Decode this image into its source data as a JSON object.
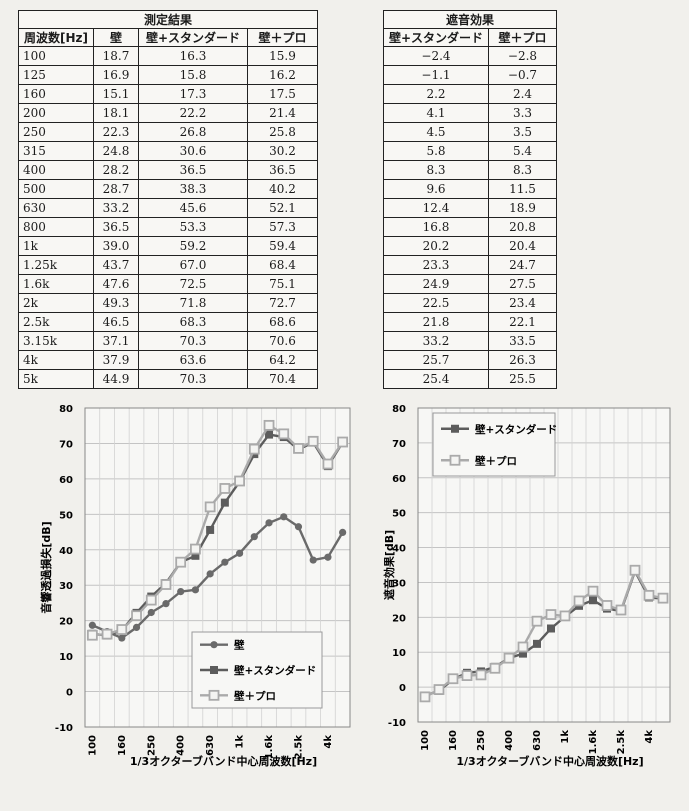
{
  "measurement_table": {
    "title": "測定結果",
    "headers": [
      "周波数[Hz]",
      "壁",
      "壁+スタンダード",
      "壁＋プロ"
    ],
    "rows": [
      [
        "100",
        "18.7",
        "16.3",
        "15.9"
      ],
      [
        "125",
        "16.9",
        "15.8",
        "16.2"
      ],
      [
        "160",
        "15.1",
        "17.3",
        "17.5"
      ],
      [
        "200",
        "18.1",
        "22.2",
        "21.4"
      ],
      [
        "250",
        "22.3",
        "26.8",
        "25.8"
      ],
      [
        "315",
        "24.8",
        "30.6",
        "30.2"
      ],
      [
        "400",
        "28.2",
        "36.5",
        "36.5"
      ],
      [
        "500",
        "28.7",
        "38.3",
        "40.2"
      ],
      [
        "630",
        "33.2",
        "45.6",
        "52.1"
      ],
      [
        "800",
        "36.5",
        "53.3",
        "57.3"
      ],
      [
        "1k",
        "39.0",
        "59.2",
        "59.4"
      ],
      [
        "1.25k",
        "43.7",
        "67.0",
        "68.4"
      ],
      [
        "1.6k",
        "47.6",
        "72.5",
        "75.1"
      ],
      [
        "2k",
        "49.3",
        "71.8",
        "72.7"
      ],
      [
        "2.5k",
        "46.5",
        "68.3",
        "68.6"
      ],
      [
        "3.15k",
        "37.1",
        "70.3",
        "70.6"
      ],
      [
        "4k",
        "37.9",
        "63.6",
        "64.2"
      ],
      [
        "5k",
        "44.9",
        "70.3",
        "70.4"
      ]
    ]
  },
  "effect_table": {
    "title": "遮音効果",
    "headers": [
      "壁+スタンダード",
      "壁＋プロ"
    ],
    "rows": [
      [
        "−2.4",
        "−2.8"
      ],
      [
        "−1.1",
        "−0.7"
      ],
      [
        "2.2",
        "2.4"
      ],
      [
        "4.1",
        "3.3"
      ],
      [
        "4.5",
        "3.5"
      ],
      [
        "5.8",
        "5.4"
      ],
      [
        "8.3",
        "8.3"
      ],
      [
        "9.6",
        "11.5"
      ],
      [
        "12.4",
        "18.9"
      ],
      [
        "16.8",
        "20.8"
      ],
      [
        "20.2",
        "20.4"
      ],
      [
        "23.3",
        "24.7"
      ],
      [
        "24.9",
        "27.5"
      ],
      [
        "22.5",
        "23.4"
      ],
      [
        "21.8",
        "22.1"
      ],
      [
        "33.2",
        "33.5"
      ],
      [
        "25.7",
        "26.3"
      ],
      [
        "25.4",
        "25.5"
      ]
    ]
  },
  "chart_data": [
    {
      "type": "line",
      "title": "",
      "ylabel": "音響透過損失[dB]",
      "xlabel": "1/3オクターブバンド中心周波数[Hz]",
      "categories": [
        "100",
        "125",
        "160",
        "200",
        "250",
        "315",
        "400",
        "500",
        "630",
        "800",
        "1k",
        "1.25k",
        "1.6k",
        "2k",
        "2.5k",
        "3.15k",
        "4k",
        "5k"
      ],
      "xtick_labels": [
        "100",
        "",
        "160",
        "",
        "250",
        "",
        "400",
        "",
        "630",
        "",
        "1k",
        "",
        "1.6k",
        "",
        "2.5k",
        "",
        "4k",
        ""
      ],
      "ylim": [
        -10,
        80
      ],
      "yticks": [
        -10,
        0,
        10,
        20,
        30,
        40,
        50,
        60,
        70,
        80
      ],
      "grid": true,
      "legend": "bottom-right",
      "series": [
        {
          "name": "壁",
          "marker": "circle",
          "color": "#6a6a6a",
          "values": [
            18.7,
            16.9,
            15.1,
            18.1,
            22.3,
            24.8,
            28.2,
            28.7,
            33.2,
            36.5,
            39.0,
            43.7,
            47.6,
            49.3,
            46.5,
            37.1,
            37.9,
            44.9
          ]
        },
        {
          "name": "壁+スタンダード",
          "marker": "square",
          "color": "#5c5c5c",
          "values": [
            16.3,
            15.8,
            17.3,
            22.2,
            26.8,
            30.6,
            36.5,
            38.3,
            45.6,
            53.3,
            59.2,
            67.0,
            72.5,
            71.8,
            68.3,
            70.3,
            63.6,
            70.3
          ]
        },
        {
          "name": "壁＋プロ",
          "marker": "open-square",
          "color": "#aaaaaa",
          "values": [
            15.9,
            16.2,
            17.5,
            21.4,
            25.8,
            30.2,
            36.5,
            40.2,
            52.1,
            57.3,
            59.4,
            68.4,
            75.1,
            72.7,
            68.6,
            70.6,
            64.2,
            70.4
          ]
        }
      ]
    },
    {
      "type": "line",
      "title": "",
      "ylabel": "遮音効果[dB]",
      "xlabel": "1/3オクターブバンド中心周波数[Hz]",
      "categories": [
        "100",
        "125",
        "160",
        "200",
        "250",
        "315",
        "400",
        "500",
        "630",
        "800",
        "1k",
        "1.25k",
        "1.6k",
        "2k",
        "2.5k",
        "3.15k",
        "4k",
        "5k"
      ],
      "xtick_labels": [
        "100",
        "",
        "160",
        "",
        "250",
        "",
        "400",
        "",
        "630",
        "",
        "1k",
        "",
        "1.6k",
        "",
        "2.5k",
        "",
        "4k",
        ""
      ],
      "ylim": [
        -10,
        80
      ],
      "yticks": [
        -10,
        0,
        10,
        20,
        30,
        40,
        50,
        60,
        70,
        80
      ],
      "grid": true,
      "legend": "top-left",
      "series": [
        {
          "name": "壁+スタンダード",
          "marker": "square",
          "color": "#5c5c5c",
          "values": [
            -2.4,
            -1.1,
            2.2,
            4.1,
            4.5,
            5.8,
            8.3,
            9.6,
            12.4,
            16.8,
            20.2,
            23.3,
            24.9,
            22.5,
            21.8,
            33.2,
            25.7,
            25.4
          ]
        },
        {
          "name": "壁＋プロ",
          "marker": "open-square",
          "color": "#aaaaaa",
          "values": [
            -2.8,
            -0.7,
            2.4,
            3.3,
            3.5,
            5.4,
            8.3,
            11.5,
            18.9,
            20.8,
            20.4,
            24.7,
            27.5,
            23.4,
            22.1,
            33.5,
            26.3,
            25.5
          ]
        }
      ]
    }
  ]
}
